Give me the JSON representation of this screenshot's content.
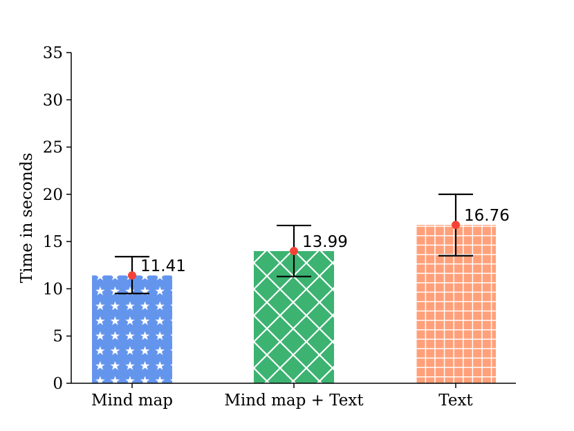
{
  "chart_data": {
    "type": "bar",
    "categories": [
      "Mind map",
      "Mind map + Text",
      "Text"
    ],
    "values": [
      11.41,
      13.99,
      16.76
    ],
    "value_labels": [
      "11.41",
      "13.99",
      "16.76"
    ],
    "error_low": [
      9.5,
      11.3,
      13.5
    ],
    "error_high": [
      13.4,
      16.7,
      20.0
    ],
    "ylabel": "Time in seconds",
    "xlabel": "",
    "ylim": [
      0,
      35
    ],
    "yticks": [
      0,
      5,
      10,
      15,
      20,
      25,
      30,
      35
    ],
    "ytick_labels": [
      "0",
      "5",
      "10",
      "15",
      "20",
      "25",
      "30",
      "35"
    ],
    "grid": false,
    "bar_colors": [
      "#6495ED",
      "#3CB371",
      "#FFA07A"
    ],
    "bar_patterns": [
      "stars",
      "diagonal-cross",
      "grid"
    ],
    "pattern_color": "#ffffff",
    "mean_marker_color": "#F44336",
    "error_bar_color": "#000000"
  }
}
